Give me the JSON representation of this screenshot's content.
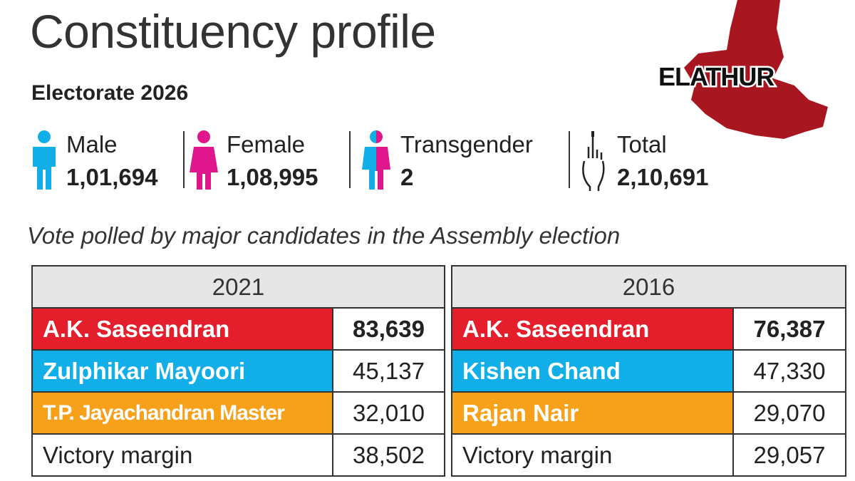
{
  "header": {
    "title": "Constituency profile",
    "map_label": "ELATHUR"
  },
  "electorate": {
    "heading": "Electorate 2026",
    "items": [
      {
        "label": "Male",
        "value": "1,01,694"
      },
      {
        "label": "Female",
        "value": "1,08,995"
      },
      {
        "label": "Transgender",
        "value": "2"
      },
      {
        "label": "Total",
        "value": "2,10,691"
      }
    ]
  },
  "subtitle": "Vote polled by major candidates in the Assembly election",
  "tables": [
    {
      "year": "2021",
      "rows": [
        {
          "name": "A.K. Saseendran",
          "votes": "83,639",
          "color": "#e41f2b"
        },
        {
          "name": "Zulphikar Mayoori",
          "votes": "45,137",
          "color": "#12aee8"
        },
        {
          "name": "T.P. Jayachandran Master",
          "votes": "32,010",
          "color": "#f7a11a"
        },
        {
          "name": "Victory margin",
          "votes": "38,502"
        }
      ]
    },
    {
      "year": "2016",
      "rows": [
        {
          "name": "A.K. Saseendran",
          "votes": "76,387",
          "color": "#e41f2b"
        },
        {
          "name": "Kishen Chand",
          "votes": "47,330",
          "color": "#12aee8"
        },
        {
          "name": "Rajan Nair",
          "votes": "29,070",
          "color": "#f7a11a"
        },
        {
          "name": "Victory margin",
          "votes": "29,057"
        }
      ]
    }
  ]
}
